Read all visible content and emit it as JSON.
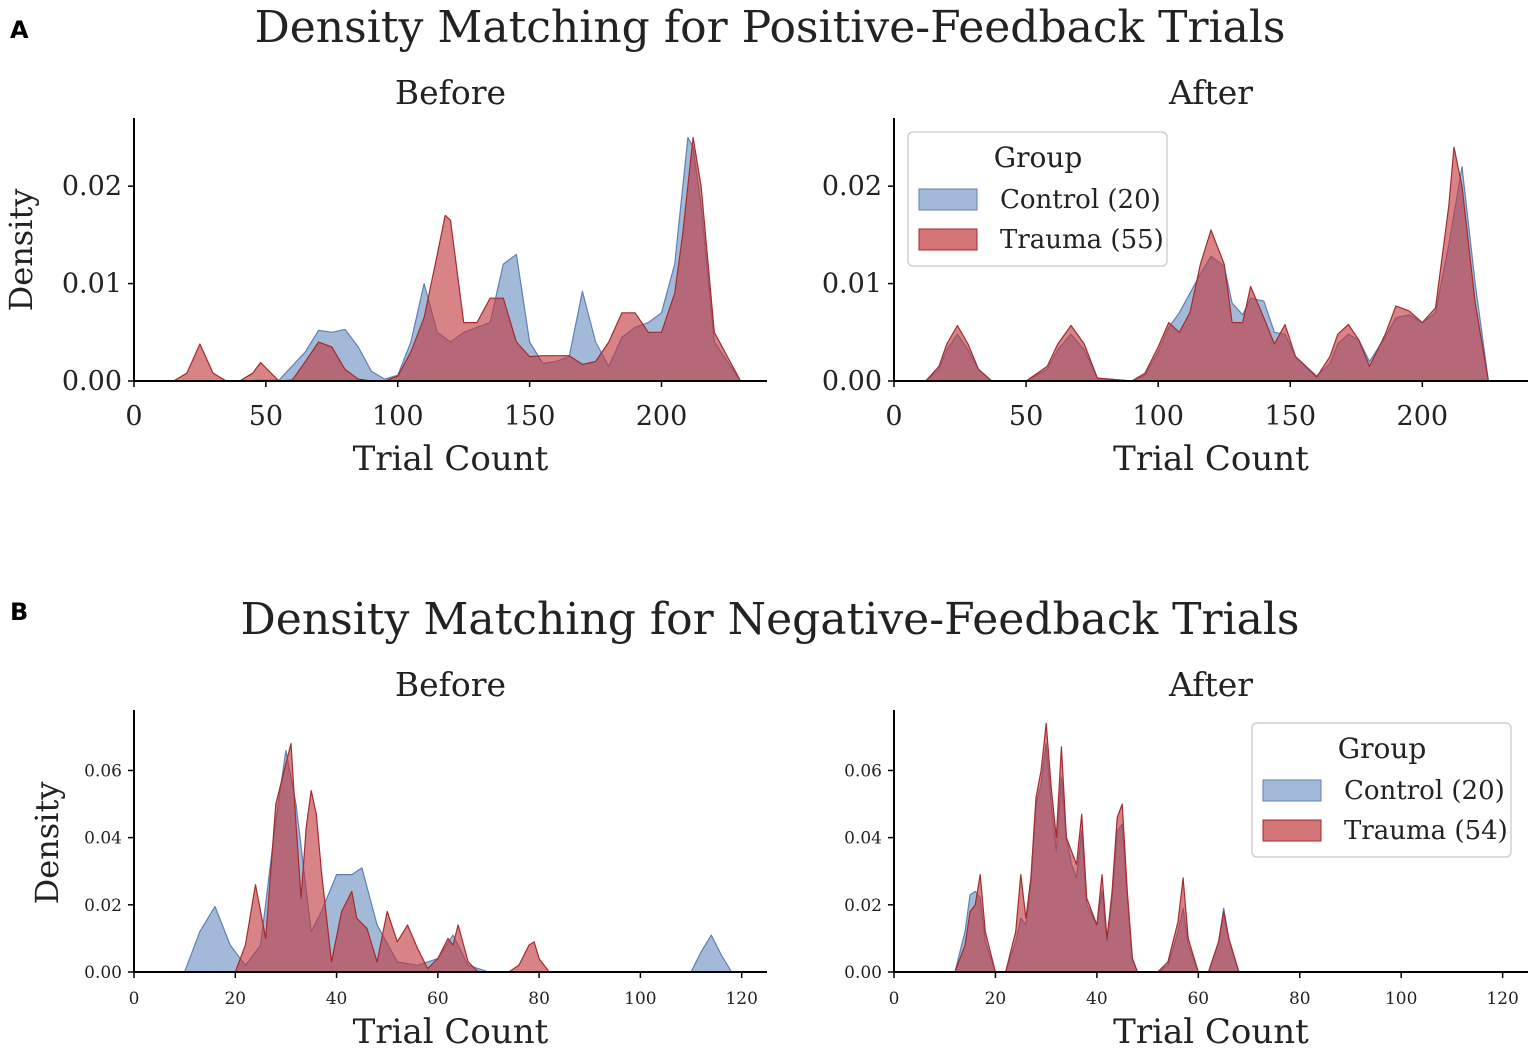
{
  "figure": {
    "panel_a_letter": "A",
    "panel_a_title": "Density Matching for Positive-Feedback Trials",
    "panel_b_letter": "B",
    "panel_b_title": "Density Matching for Negative-Feedback Trials"
  },
  "colors": {
    "control_fill": "#7f9ec9",
    "control_edge": "#5f7fb5",
    "trauma_fill": "#c0393d",
    "trauma_edge": "#a52a2e"
  },
  "chart_data": [
    {
      "id": "pos_before",
      "type": "area",
      "title": "Before",
      "xlabel": "Trial Count",
      "ylabel": "Density",
      "xlim": [
        0,
        240
      ],
      "ylim": [
        0,
        0.027
      ],
      "xticks": [
        0,
        50,
        100,
        150,
        200
      ],
      "yticks": [
        0.0,
        0.01,
        0.02
      ],
      "ytick_labels": [
        "0.00",
        "0.01",
        "0.02"
      ],
      "series": [
        {
          "name": "Control",
          "x": [
            35,
            55,
            65,
            70,
            75,
            80,
            85,
            90,
            95,
            100,
            105,
            110,
            115,
            120,
            125,
            130,
            135,
            140,
            145,
            150,
            155,
            160,
            165,
            170,
            175,
            180,
            185,
            190,
            195,
            200,
            205,
            210,
            212,
            215,
            220,
            230
          ],
          "y": [
            0,
            0.0001,
            0.003,
            0.0052,
            0.005,
            0.0053,
            0.0035,
            0.001,
            0.0002,
            0.0006,
            0.004,
            0.01,
            0.005,
            0.004,
            0.005,
            0.0055,
            0.006,
            0.012,
            0.013,
            0.004,
            0.0018,
            0.002,
            0.0025,
            0.0092,
            0.004,
            0.0015,
            0.0045,
            0.0055,
            0.006,
            0.007,
            0.012,
            0.025,
            0.024,
            0.018,
            0.004,
            0
          ]
        },
        {
          "name": "Trauma",
          "x": [
            15,
            20,
            25,
            30,
            35,
            40,
            45,
            48,
            52,
            55,
            60,
            65,
            70,
            75,
            80,
            85,
            90,
            95,
            100,
            105,
            110,
            115,
            118,
            120,
            125,
            130,
            135,
            140,
            145,
            150,
            155,
            160,
            165,
            170,
            175,
            180,
            185,
            190,
            195,
            200,
            205,
            208,
            212,
            215,
            220,
            230
          ],
          "y": [
            0,
            0.0008,
            0.0038,
            0.0008,
            0,
            0,
            0.0008,
            0.0019,
            0.0008,
            0,
            0.0001,
            0.002,
            0.004,
            0.0035,
            0.0012,
            0.0002,
            0,
            0,
            0.0005,
            0.003,
            0.0065,
            0.013,
            0.017,
            0.0165,
            0.006,
            0.006,
            0.0085,
            0.0085,
            0.004,
            0.0025,
            0.0026,
            0.0026,
            0.0026,
            0.0017,
            0.002,
            0.004,
            0.007,
            0.007,
            0.005,
            0.005,
            0.009,
            0.015,
            0.025,
            0.02,
            0.005,
            0
          ]
        }
      ]
    },
    {
      "id": "pos_after",
      "type": "area",
      "title": "After",
      "xlabel": "Trial Count",
      "ylabel": "",
      "xlim": [
        0,
        240
      ],
      "ylim": [
        0,
        0.027
      ],
      "xticks": [
        0,
        50,
        100,
        150,
        200
      ],
      "yticks": [
        0.0,
        0.01,
        0.02
      ],
      "ytick_labels": [
        "0.00",
        "0.01",
        "0.02"
      ],
      "legend": {
        "title": "Group",
        "entries": [
          "Control (20)",
          "Trauma (55)"
        ]
      },
      "series": [
        {
          "name": "Control (20)",
          "x": [
            12,
            17,
            20,
            24,
            28,
            32,
            37,
            50,
            58,
            62,
            67,
            72,
            77,
            90,
            95,
            100,
            104,
            108,
            112,
            116,
            120,
            125,
            128,
            132,
            135,
            140,
            144,
            148,
            152,
            160,
            165,
            168,
            172,
            176,
            180,
            186,
            190,
            195,
            200,
            205,
            210,
            215,
            220,
            225
          ],
          "y": [
            0,
            0.0012,
            0.0032,
            0.0048,
            0.0032,
            0.0012,
            0,
            0,
            0.0012,
            0.0032,
            0.0048,
            0.0032,
            0.0003,
            0,
            0.0006,
            0.003,
            0.0055,
            0.007,
            0.009,
            0.011,
            0.0128,
            0.0118,
            0.008,
            0.0068,
            0.0085,
            0.0082,
            0.005,
            0.0048,
            0.0025,
            0.0005,
            0.0018,
            0.0038,
            0.0048,
            0.0042,
            0.002,
            0.0045,
            0.0065,
            0.0068,
            0.006,
            0.007,
            0.014,
            0.022,
            0.01,
            0
          ]
        },
        {
          "name": "Trauma (55)",
          "x": [
            12,
            17,
            20,
            24,
            28,
            32,
            37,
            50,
            58,
            62,
            67,
            72,
            77,
            90,
            95,
            100,
            104,
            108,
            112,
            116,
            120,
            125,
            128,
            132,
            135,
            140,
            144,
            148,
            152,
            160,
            165,
            168,
            172,
            176,
            180,
            186,
            190,
            195,
            200,
            205,
            210,
            212,
            215,
            220,
            225
          ],
          "y": [
            0,
            0.0015,
            0.0038,
            0.0057,
            0.0038,
            0.0012,
            0,
            0,
            0.0015,
            0.0038,
            0.0057,
            0.0038,
            0.0003,
            0,
            0.0008,
            0.0035,
            0.006,
            0.005,
            0.007,
            0.012,
            0.0155,
            0.012,
            0.006,
            0.006,
            0.0097,
            0.0065,
            0.0038,
            0.0058,
            0.0025,
            0.0004,
            0.0025,
            0.0048,
            0.0058,
            0.0042,
            0.0015,
            0.0048,
            0.0077,
            0.0072,
            0.006,
            0.0075,
            0.018,
            0.024,
            0.02,
            0.008,
            0
          ]
        }
      ]
    },
    {
      "id": "neg_before",
      "type": "area",
      "title": "Before",
      "xlabel": "Trial Count",
      "ylabel": "Density",
      "xlim": [
        0,
        125
      ],
      "ylim": [
        0,
        0.078
      ],
      "xticks": [
        0,
        20,
        40,
        60,
        80,
        100,
        120
      ],
      "yticks": [
        0.0,
        0.02,
        0.04,
        0.06
      ],
      "ytick_labels": [
        "0.00",
        "0.02",
        "0.04",
        "0.06"
      ],
      "series": [
        {
          "name": "Control",
          "x": [
            10,
            13,
            16,
            19,
            22,
            25,
            28,
            30,
            32,
            35,
            37,
            40,
            43,
            45,
            48,
            52,
            56,
            60,
            63,
            66,
            70,
            75,
            80,
            85,
            90,
            95,
            100,
            105,
            110,
            112,
            114,
            116,
            118
          ],
          "y": [
            0,
            0.012,
            0.0195,
            0.008,
            0.002,
            0.008,
            0.045,
            0.066,
            0.05,
            0.012,
            0.018,
            0.029,
            0.029,
            0.031,
            0.014,
            0.003,
            0.002,
            0.004,
            0.011,
            0.002,
            0,
            0,
            0,
            0,
            0,
            0,
            0,
            0,
            0,
            0.006,
            0.011,
            0.005,
            0
          ]
        },
        {
          "name": "Trauma",
          "x": [
            20,
            22,
            24,
            26,
            28,
            30,
            31,
            32,
            33,
            34,
            35,
            36,
            37,
            39,
            41,
            43,
            44,
            46,
            48,
            50,
            52,
            54,
            56,
            58,
            60,
            62,
            63,
            64,
            66,
            68,
            70,
            74,
            76,
            78,
            79,
            80,
            82
          ],
          "y": [
            0,
            0.008,
            0.026,
            0.01,
            0.05,
            0.062,
            0.068,
            0.044,
            0.022,
            0.043,
            0.054,
            0.047,
            0.03,
            0.003,
            0.018,
            0.024,
            0.016,
            0.013,
            0.003,
            0.018,
            0.009,
            0.014,
            0.007,
            0.001,
            0.004,
            0.01,
            0.008,
            0.014,
            0.003,
            0,
            0,
            0,
            0.002,
            0.008,
            0.009,
            0.004,
            0
          ]
        }
      ]
    },
    {
      "id": "neg_after",
      "type": "area",
      "title": "After",
      "xlabel": "Trial Count",
      "ylabel": "",
      "xlim": [
        0,
        125
      ],
      "ylim": [
        0,
        0.078
      ],
      "xticks": [
        0,
        20,
        40,
        60,
        80,
        100,
        120
      ],
      "yticks": [
        0.0,
        0.02,
        0.04,
        0.06
      ],
      "ytick_labels": [
        "0.00",
        "0.02",
        "0.04",
        "0.06"
      ],
      "legend": {
        "title": "Group",
        "entries": [
          "Control (20)",
          "Trauma (54)"
        ]
      },
      "series": [
        {
          "name": "Control (20)",
          "x": [
            12,
            14,
            15,
            16,
            17,
            18,
            20,
            22,
            24,
            25,
            26,
            27,
            28,
            29,
            30,
            31,
            32,
            33,
            34,
            35,
            36,
            37,
            38,
            40,
            41,
            42,
            43,
            44,
            45,
            46,
            47,
            48,
            50,
            52,
            54,
            56,
            57,
            58,
            60,
            62,
            64,
            65,
            66,
            68
          ],
          "y": [
            0,
            0.012,
            0.023,
            0.024,
            0.022,
            0.009,
            0,
            0,
            0.009,
            0.016,
            0.014,
            0.026,
            0.05,
            0.056,
            0.068,
            0.05,
            0.036,
            0.058,
            0.04,
            0.032,
            0.028,
            0.042,
            0.02,
            0.014,
            0.024,
            0.009,
            0.022,
            0.042,
            0.044,
            0.022,
            0.004,
            0,
            0,
            0,
            0.002,
            0.012,
            0.019,
            0.008,
            0,
            0,
            0.009,
            0.019,
            0.01,
            0
          ]
        },
        {
          "name": "Trauma (54)",
          "x": [
            12,
            14,
            15,
            16,
            17,
            18,
            20,
            22,
            24,
            25,
            26,
            27,
            28,
            29,
            30,
            31,
            32,
            33,
            34,
            35,
            36,
            37,
            38,
            40,
            41,
            42,
            43,
            44,
            45,
            46,
            47,
            48,
            50,
            52,
            54,
            56,
            57,
            58,
            60,
            62,
            64,
            65,
            66,
            68
          ],
          "y": [
            0,
            0.008,
            0.018,
            0.02,
            0.029,
            0.012,
            0,
            0,
            0.012,
            0.029,
            0.016,
            0.028,
            0.052,
            0.06,
            0.074,
            0.055,
            0.04,
            0.067,
            0.04,
            0.036,
            0.032,
            0.047,
            0.022,
            0.014,
            0.029,
            0.01,
            0.024,
            0.046,
            0.05,
            0.024,
            0.004,
            0,
            0,
            0,
            0.003,
            0.015,
            0.028,
            0.01,
            0,
            0,
            0.009,
            0.018,
            0.01,
            0
          ]
        }
      ]
    }
  ]
}
